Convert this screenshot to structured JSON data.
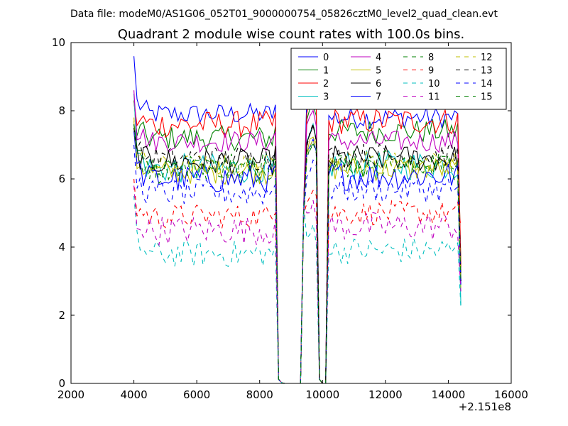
{
  "chart_data": {
    "type": "line",
    "suptitle": "Data file: modeM0/AS1G06_052T01_9000000754_05826cztM0_level2_quad_clean.evt",
    "title": "Quadrant 2 module wise count rates with 100.0s bins.",
    "xlabel": "",
    "ylabel": "",
    "x_offset_label": "+2.151e8",
    "xlim": [
      2000,
      16000
    ],
    "ylim": [
      0,
      10
    ],
    "x_ticks": [
      2000,
      4000,
      6000,
      8000,
      10000,
      12000,
      14000,
      16000
    ],
    "x_tick_labels": [
      "2000",
      "4000",
      "6000",
      "8000",
      "10000",
      "12000",
      "14000",
      "16000"
    ],
    "y_ticks": [
      0,
      2,
      4,
      6,
      8,
      10
    ],
    "y_tick_labels": [
      "0",
      "2",
      "4",
      "6",
      "8",
      "10"
    ],
    "grid": false,
    "legend_position": "top-right",
    "legend_columns": 4,
    "x_description": "100 s bins; segment A 4000-8500, gap to 9400, segment B 9400-9800, gap to 10100, segment C 10100-14400",
    "series": [
      {
        "name": "0",
        "color": "#0000ff",
        "style": "solid",
        "seg_a": 7.9,
        "seg_b": 8.3,
        "seg_c": 7.8,
        "first": 9.6,
        "end_c": 3.1
      },
      {
        "name": "1",
        "color": "#008000",
        "style": "solid",
        "seg_a": 7.2,
        "seg_b": 7.8,
        "seg_c": 7.4,
        "first": 8.3,
        "end_c": 3.5
      },
      {
        "name": "2",
        "color": "#ff0000",
        "style": "solid",
        "seg_a": 7.6,
        "seg_b": 8.0,
        "seg_c": 7.7,
        "first": 8.3,
        "end_c": 3.4
      },
      {
        "name": "3",
        "color": "#00bfbf",
        "style": "solid",
        "seg_a": 6.3,
        "seg_b": 7.0,
        "seg_c": 6.4,
        "first": 8.5,
        "end_c": 2.3
      },
      {
        "name": "4",
        "color": "#bf00bf",
        "style": "solid",
        "seg_a": 7.1,
        "seg_b": 7.6,
        "seg_c": 7.1,
        "first": 8.6,
        "end_c": 3.0
      },
      {
        "name": "5",
        "color": "#bfbf00",
        "style": "solid",
        "seg_a": 6.2,
        "seg_b": 6.8,
        "seg_c": 6.3,
        "first": 7.7,
        "end_c": 2.8
      },
      {
        "name": "6",
        "color": "#000000",
        "style": "solid",
        "seg_a": 6.5,
        "seg_b": 7.0,
        "seg_c": 6.6,
        "first": 7.6,
        "end_c": 3.0
      },
      {
        "name": "7",
        "color": "#0000ff",
        "style": "solid",
        "seg_a": 6.0,
        "seg_b": 6.6,
        "seg_c": 6.1,
        "first": 7.4,
        "end_c": 2.9
      },
      {
        "name": "8",
        "color": "#008000",
        "style": "dashed",
        "seg_a": 6.3,
        "seg_b": 6.8,
        "seg_c": 6.4,
        "first": 7.5,
        "end_c": 3.0
      },
      {
        "name": "9",
        "color": "#ff0000",
        "style": "dashed",
        "seg_a": 4.9,
        "seg_b": 5.4,
        "seg_c": 5.0,
        "first": 6.0,
        "end_c": 4.6
      },
      {
        "name": "10",
        "color": "#00bfbf",
        "style": "dashed",
        "seg_a": 3.8,
        "seg_b": 4.2,
        "seg_c": 3.9,
        "first": 5.5,
        "end_c": 2.2
      },
      {
        "name": "11",
        "color": "#bf00bf",
        "style": "dashed",
        "seg_a": 4.5,
        "seg_b": 4.9,
        "seg_c": 4.6,
        "first": 5.8,
        "end_c": 2.7
      },
      {
        "name": "12",
        "color": "#bfbf00",
        "style": "dashed",
        "seg_a": 6.4,
        "seg_b": 6.9,
        "seg_c": 6.5,
        "first": 7.8,
        "end_c": 3.0
      },
      {
        "name": "13",
        "color": "#000000",
        "style": "dashed",
        "seg_a": 6.6,
        "seg_b": 7.1,
        "seg_c": 6.7,
        "first": 7.5,
        "end_c": 3.0
      },
      {
        "name": "14",
        "color": "#0000ff",
        "style": "dashed",
        "seg_a": 5.6,
        "seg_b": 6.1,
        "seg_c": 5.7,
        "first": 7.0,
        "end_c": 2.9
      },
      {
        "name": "15",
        "color": "#008000",
        "style": "dashed",
        "seg_a": 6.3,
        "seg_b": 6.8,
        "seg_c": 6.4,
        "first": 7.6,
        "end_c": 3.0
      }
    ]
  }
}
